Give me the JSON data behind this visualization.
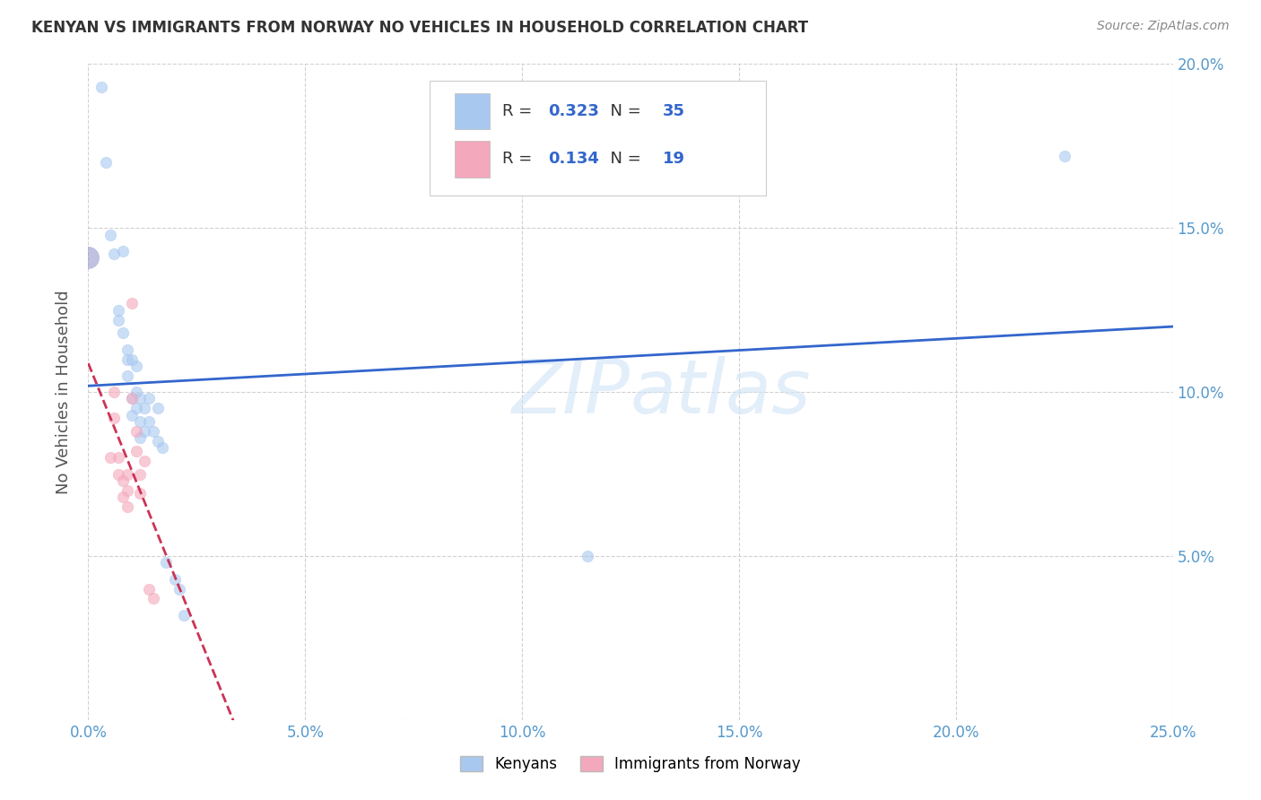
{
  "title": "KENYAN VS IMMIGRANTS FROM NORWAY NO VEHICLES IN HOUSEHOLD CORRELATION CHART",
  "source": "Source: ZipAtlas.com",
  "ylabel": "No Vehicles in Household",
  "xlabel": "",
  "xlim": [
    0.0,
    0.25
  ],
  "ylim": [
    0.0,
    0.2
  ],
  "xticks": [
    0.0,
    0.05,
    0.1,
    0.15,
    0.2,
    0.25
  ],
  "yticks": [
    0.0,
    0.05,
    0.1,
    0.15,
    0.2
  ],
  "xticklabels": [
    "0.0%",
    "5.0%",
    "10.0%",
    "15.0%",
    "20.0%",
    "25.0%"
  ],
  "yticklabels_right": [
    "",
    "5.0%",
    "10.0%",
    "15.0%",
    "20.0%"
  ],
  "kenyan_color": "#A8C8F0",
  "norway_color": "#F4A8BC",
  "kenyan_label": "Kenyans",
  "norway_label": "Immigrants from Norway",
  "R_kenyan": "0.323",
  "N_kenyan": "35",
  "R_norway": "0.134",
  "N_norway": "19",
  "trendline_kenyan_color": "#3366CC",
  "trendline_norway_color": "#CC3355",
  "watermark": "ZIPatlas",
  "background_color": "#FFFFFF",
  "grid_color": "#CCCCCC",
  "kenyan_points": [
    [
      0.0,
      0.141
    ],
    [
      0.003,
      0.193
    ],
    [
      0.004,
      0.17
    ],
    [
      0.005,
      0.148
    ],
    [
      0.006,
      0.142
    ],
    [
      0.007,
      0.125
    ],
    [
      0.007,
      0.122
    ],
    [
      0.008,
      0.143
    ],
    [
      0.008,
      0.118
    ],
    [
      0.009,
      0.113
    ],
    [
      0.009,
      0.11
    ],
    [
      0.009,
      0.105
    ],
    [
      0.01,
      0.11
    ],
    [
      0.01,
      0.098
    ],
    [
      0.01,
      0.093
    ],
    [
      0.011,
      0.108
    ],
    [
      0.011,
      0.1
    ],
    [
      0.011,
      0.095
    ],
    [
      0.012,
      0.098
    ],
    [
      0.012,
      0.091
    ],
    [
      0.012,
      0.086
    ],
    [
      0.013,
      0.095
    ],
    [
      0.013,
      0.088
    ],
    [
      0.014,
      0.098
    ],
    [
      0.014,
      0.091
    ],
    [
      0.015,
      0.088
    ],
    [
      0.016,
      0.095
    ],
    [
      0.016,
      0.085
    ],
    [
      0.017,
      0.083
    ],
    [
      0.018,
      0.048
    ],
    [
      0.02,
      0.043
    ],
    [
      0.021,
      0.04
    ],
    [
      0.022,
      0.032
    ],
    [
      0.115,
      0.05
    ],
    [
      0.225,
      0.172
    ]
  ],
  "norway_points": [
    [
      0.005,
      0.08
    ],
    [
      0.006,
      0.1
    ],
    [
      0.006,
      0.092
    ],
    [
      0.007,
      0.08
    ],
    [
      0.007,
      0.075
    ],
    [
      0.008,
      0.073
    ],
    [
      0.008,
      0.068
    ],
    [
      0.009,
      0.075
    ],
    [
      0.009,
      0.07
    ],
    [
      0.009,
      0.065
    ],
    [
      0.01,
      0.127
    ],
    [
      0.01,
      0.098
    ],
    [
      0.011,
      0.088
    ],
    [
      0.011,
      0.082
    ],
    [
      0.012,
      0.075
    ],
    [
      0.012,
      0.069
    ],
    [
      0.013,
      0.079
    ],
    [
      0.014,
      0.04
    ],
    [
      0.015,
      0.037
    ]
  ]
}
